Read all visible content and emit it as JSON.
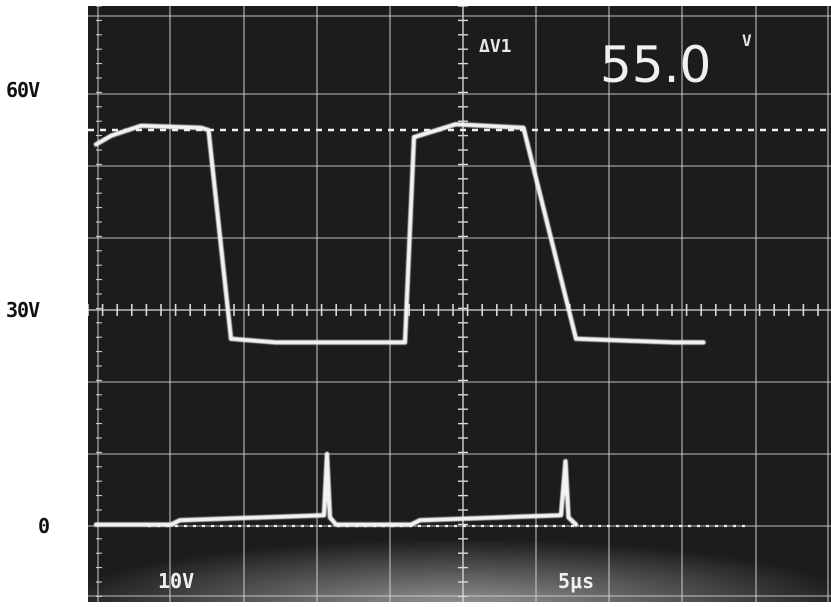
{
  "axis_labels": {
    "top": "60V",
    "middle": "30V",
    "bottom": "0"
  },
  "readout": {
    "symbol": "ΔV1",
    "value": "55.0",
    "unit": "V"
  },
  "settings": {
    "volts_per_div": "10V",
    "time_per_div": "5μs"
  },
  "colors": {
    "screen_bg": "#1c1c1c",
    "grid": "#d8d8d8",
    "trace": "#f2f2f2",
    "text": "#111111"
  },
  "chart_data": {
    "type": "line",
    "title": "",
    "xlabel": "",
    "ylabel": "",
    "y_ticks": [
      "0",
      "30V",
      "60V"
    ],
    "ylim": [
      0,
      60
    ],
    "x_unit": "μs",
    "marker_level": 55.0,
    "series": [
      {
        "x": [
          0.0,
          1.0,
          3.0,
          7.0,
          7.5,
          9.0,
          12.0,
          20.6,
          21.2,
          24.0,
          28.5,
          32.0,
          38.5,
          40.5
        ],
        "y": [
          53.0,
          54.2,
          55.6,
          55.3,
          55.0,
          26.0,
          25.5,
          25.5,
          54.0,
          55.8,
          55.3,
          26.0,
          25.5,
          25.5
        ]
      },
      {
        "x": [
          0.0,
          5.0,
          5.6,
          15.2,
          15.4,
          15.6,
          16.0,
          21.0,
          21.6,
          31.0,
          31.3,
          31.5,
          32.0
        ],
        "y": [
          0.2,
          0.2,
          0.8,
          1.5,
          10.0,
          1.2,
          0.2,
          0.2,
          0.8,
          1.5,
          9.0,
          1.2,
          0.2
        ]
      }
    ]
  }
}
